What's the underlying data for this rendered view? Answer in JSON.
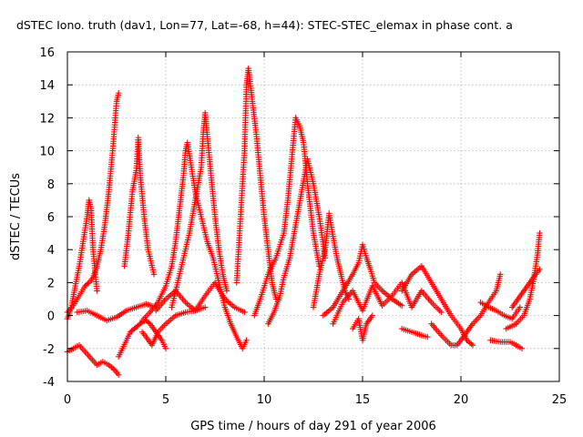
{
  "chart_data": {
    "type": "scatter",
    "title": "dSTEC Iono. truth (dav1, Lon=77, Lat=-68, h=44): STEC-STEC_elemax in phase cont. a",
    "xlabel": "GPS time / hours of day 291 of year 2006",
    "ylabel": "dSTEC  / TECUs",
    "xlim": [
      0,
      25
    ],
    "ylim": [
      -4,
      16
    ],
    "xticks": [
      0,
      5,
      10,
      15,
      20,
      25
    ],
    "yticks": [
      -4,
      -2,
      0,
      2,
      4,
      6,
      8,
      10,
      12,
      14,
      16
    ],
    "grid": true,
    "marker": "+",
    "color": "#ff0000",
    "series": [
      {
        "x": [
          0.0,
          0.3,
          0.6,
          0.9,
          1.1,
          1.3,
          1.5,
          1.7,
          1.9,
          2.1,
          2.3,
          2.5,
          2.6
        ],
        "y": [
          0.2,
          0.6,
          1.2,
          1.8,
          2.0,
          2.3,
          3.0,
          4.0,
          5.5,
          7.5,
          10.0,
          13.0,
          13.5
        ]
      },
      {
        "x": [
          0.0,
          0.2,
          0.4,
          0.6,
          0.8,
          1.0,
          1.1,
          1.2,
          1.3,
          1.5
        ],
        "y": [
          -0.2,
          0.5,
          1.8,
          3.0,
          4.5,
          6.0,
          7.0,
          6.5,
          4.0,
          1.5
        ]
      },
      {
        "x": [
          0.0,
          0.3,
          0.6,
          0.9,
          1.2,
          1.5,
          1.8,
          2.1,
          2.4,
          2.6
        ],
        "y": [
          -2.2,
          -2.0,
          -1.8,
          -2.2,
          -2.6,
          -3.0,
          -2.8,
          -3.0,
          -3.3,
          -3.6
        ]
      },
      {
        "x": [
          0.5,
          1.0,
          1.5,
          2.0,
          2.5,
          3.0,
          3.5,
          4.0,
          4.5
        ],
        "y": [
          0.2,
          0.3,
          0.0,
          -0.3,
          -0.1,
          0.3,
          0.5,
          0.7,
          0.5
        ]
      },
      {
        "x": [
          2.6,
          2.8,
          3.0,
          3.2,
          3.4,
          3.6,
          3.8,
          4.0,
          4.2,
          4.5,
          4.8,
          5.0
        ],
        "y": [
          -2.5,
          -2.0,
          -1.5,
          -1.0,
          -0.8,
          -0.6,
          -0.4,
          -0.3,
          -0.5,
          -1.0,
          -1.5,
          -2.0
        ]
      },
      {
        "x": [
          2.9,
          3.1,
          3.3,
          3.5,
          3.6,
          3.7,
          3.9,
          4.1,
          4.4
        ],
        "y": [
          3.0,
          5.0,
          7.5,
          8.8,
          10.8,
          8.5,
          6.0,
          4.0,
          2.5
        ]
      },
      {
        "x": [
          3.8,
          4.2,
          4.6,
          5.0,
          5.3,
          5.5,
          5.7,
          5.9,
          6.0,
          6.1,
          6.3,
          6.5,
          6.8,
          7.1,
          7.4,
          7.7,
          8.0,
          8.3,
          8.6,
          8.9,
          9.1
        ],
        "y": [
          -0.3,
          0.2,
          0.8,
          1.8,
          3.0,
          4.5,
          6.5,
          8.5,
          10.0,
          10.5,
          9.0,
          7.5,
          6.0,
          4.5,
          3.5,
          2.0,
          0.5,
          -0.5,
          -1.3,
          -2.0,
          -1.5
        ]
      },
      {
        "x": [
          5.3,
          5.6,
          5.9,
          6.2,
          6.5,
          6.8,
          6.9,
          7.0,
          7.1,
          7.3,
          7.5,
          7.7,
          7.9,
          8.1
        ],
        "y": [
          0.5,
          2.0,
          3.5,
          5.0,
          7.0,
          9.0,
          11.0,
          12.3,
          11.0,
          8.5,
          6.0,
          4.0,
          2.5,
          1.5
        ]
      },
      {
        "x": [
          4.5,
          5.0,
          5.5,
          6.0,
          6.5,
          7.0,
          7.5,
          8.0,
          8.5,
          9.0
        ],
        "y": [
          0.3,
          1.0,
          1.5,
          0.8,
          0.3,
          1.2,
          2.0,
          1.0,
          0.5,
          0.2
        ]
      },
      {
        "x": [
          8.6,
          8.8,
          9.0,
          9.1,
          9.2,
          9.4,
          9.6,
          9.8,
          10.0,
          10.2,
          10.4,
          10.6
        ],
        "y": [
          2.0,
          6.0,
          10.0,
          14.0,
          15.0,
          13.0,
          11.0,
          8.5,
          6.0,
          4.0,
          2.0,
          1.0
        ]
      },
      {
        "x": [
          9.5,
          9.8,
          10.2,
          10.6,
          11.0,
          11.2,
          11.4,
          11.6,
          11.8,
          12.0,
          12.2,
          12.5,
          12.8
        ],
        "y": [
          0.0,
          1.0,
          2.5,
          3.5,
          5.0,
          7.0,
          9.5,
          12.0,
          11.5,
          10.5,
          8.0,
          5.0,
          3.0
        ]
      },
      {
        "x": [
          10.2,
          10.5,
          10.8,
          11.0,
          11.3,
          11.6,
          11.9,
          12.2,
          12.5,
          12.8,
          13.1
        ],
        "y": [
          -0.5,
          0.2,
          1.2,
          2.3,
          3.5,
          5.5,
          7.5,
          9.5,
          8.0,
          6.0,
          3.5
        ]
      },
      {
        "x": [
          12.5,
          12.8,
          13.1,
          13.3,
          13.5,
          13.7,
          13.9,
          14.1,
          14.3
        ],
        "y": [
          0.5,
          2.5,
          4.0,
          6.2,
          4.8,
          3.5,
          2.5,
          1.5,
          1.0
        ]
      },
      {
        "x": [
          13.0,
          13.5,
          14.0,
          14.5,
          14.8,
          15.0,
          15.2,
          15.4,
          15.6,
          16.0,
          16.5,
          17.0
        ],
        "y": [
          0.0,
          0.5,
          1.5,
          2.5,
          3.2,
          4.3,
          3.5,
          2.8,
          2.0,
          1.5,
          1.0,
          0.6
        ]
      },
      {
        "x": [
          13.5,
          14.0,
          14.5,
          15.0,
          15.5,
          16.0,
          16.5,
          17.0,
          17.5,
          18.0,
          18.5,
          19.0
        ],
        "y": [
          -0.5,
          0.8,
          1.5,
          0.3,
          1.8,
          0.6,
          1.2,
          2.0,
          0.5,
          1.5,
          0.8,
          0.2
        ]
      },
      {
        "x": [
          14.5,
          14.8,
          15.0,
          15.2,
          15.5
        ],
        "y": [
          -0.8,
          -0.2,
          -1.5,
          -0.5,
          0.0
        ]
      },
      {
        "x": [
          17.0,
          17.5,
          18.0,
          18.5,
          19.0,
          19.5,
          20.0,
          20.3,
          20.6
        ],
        "y": [
          1.5,
          2.5,
          3.0,
          2.0,
          1.0,
          0.0,
          -0.8,
          -1.5,
          -1.8
        ]
      },
      {
        "x": [
          18.5,
          19.0,
          19.5,
          19.8,
          20.0,
          20.3,
          20.6,
          21.0,
          21.4,
          21.8,
          22.0
        ],
        "y": [
          -0.5,
          -1.2,
          -1.8,
          -1.8,
          -1.5,
          -1.0,
          -0.5,
          0.0,
          0.8,
          1.5,
          2.5
        ]
      },
      {
        "x": [
          17.0,
          17.5,
          18.0,
          18.3
        ],
        "y": [
          -0.8,
          -1.0,
          -1.2,
          -1.3
        ]
      },
      {
        "x": [
          21.0,
          21.4,
          21.8,
          22.2,
          22.6,
          23.0
        ],
        "y": [
          0.8,
          0.5,
          0.3,
          0.0,
          -0.2,
          0.5
        ]
      },
      {
        "x": [
          21.5,
          22.0,
          22.5,
          22.8,
          23.1
        ],
        "y": [
          -1.5,
          -1.6,
          -1.6,
          -1.8,
          -2.0
        ]
      },
      {
        "x": [
          22.3,
          22.8,
          23.2,
          23.5,
          23.7,
          23.9,
          24.0
        ],
        "y": [
          -0.8,
          -0.5,
          0.0,
          1.0,
          2.2,
          3.8,
          5.0
        ]
      },
      {
        "x": [
          22.6,
          22.9,
          23.2,
          23.5,
          23.8,
          24.0
        ],
        "y": [
          0.5,
          1.0,
          1.5,
          2.0,
          2.5,
          2.8
        ]
      },
      {
        "x": [
          3.8,
          4.0,
          4.3,
          4.6,
          5.0,
          5.5,
          6.0,
          6.5,
          7.0
        ],
        "y": [
          -1.0,
          -1.3,
          -1.8,
          -1.0,
          -0.5,
          0.0,
          0.2,
          0.3,
          0.5
        ]
      }
    ]
  }
}
